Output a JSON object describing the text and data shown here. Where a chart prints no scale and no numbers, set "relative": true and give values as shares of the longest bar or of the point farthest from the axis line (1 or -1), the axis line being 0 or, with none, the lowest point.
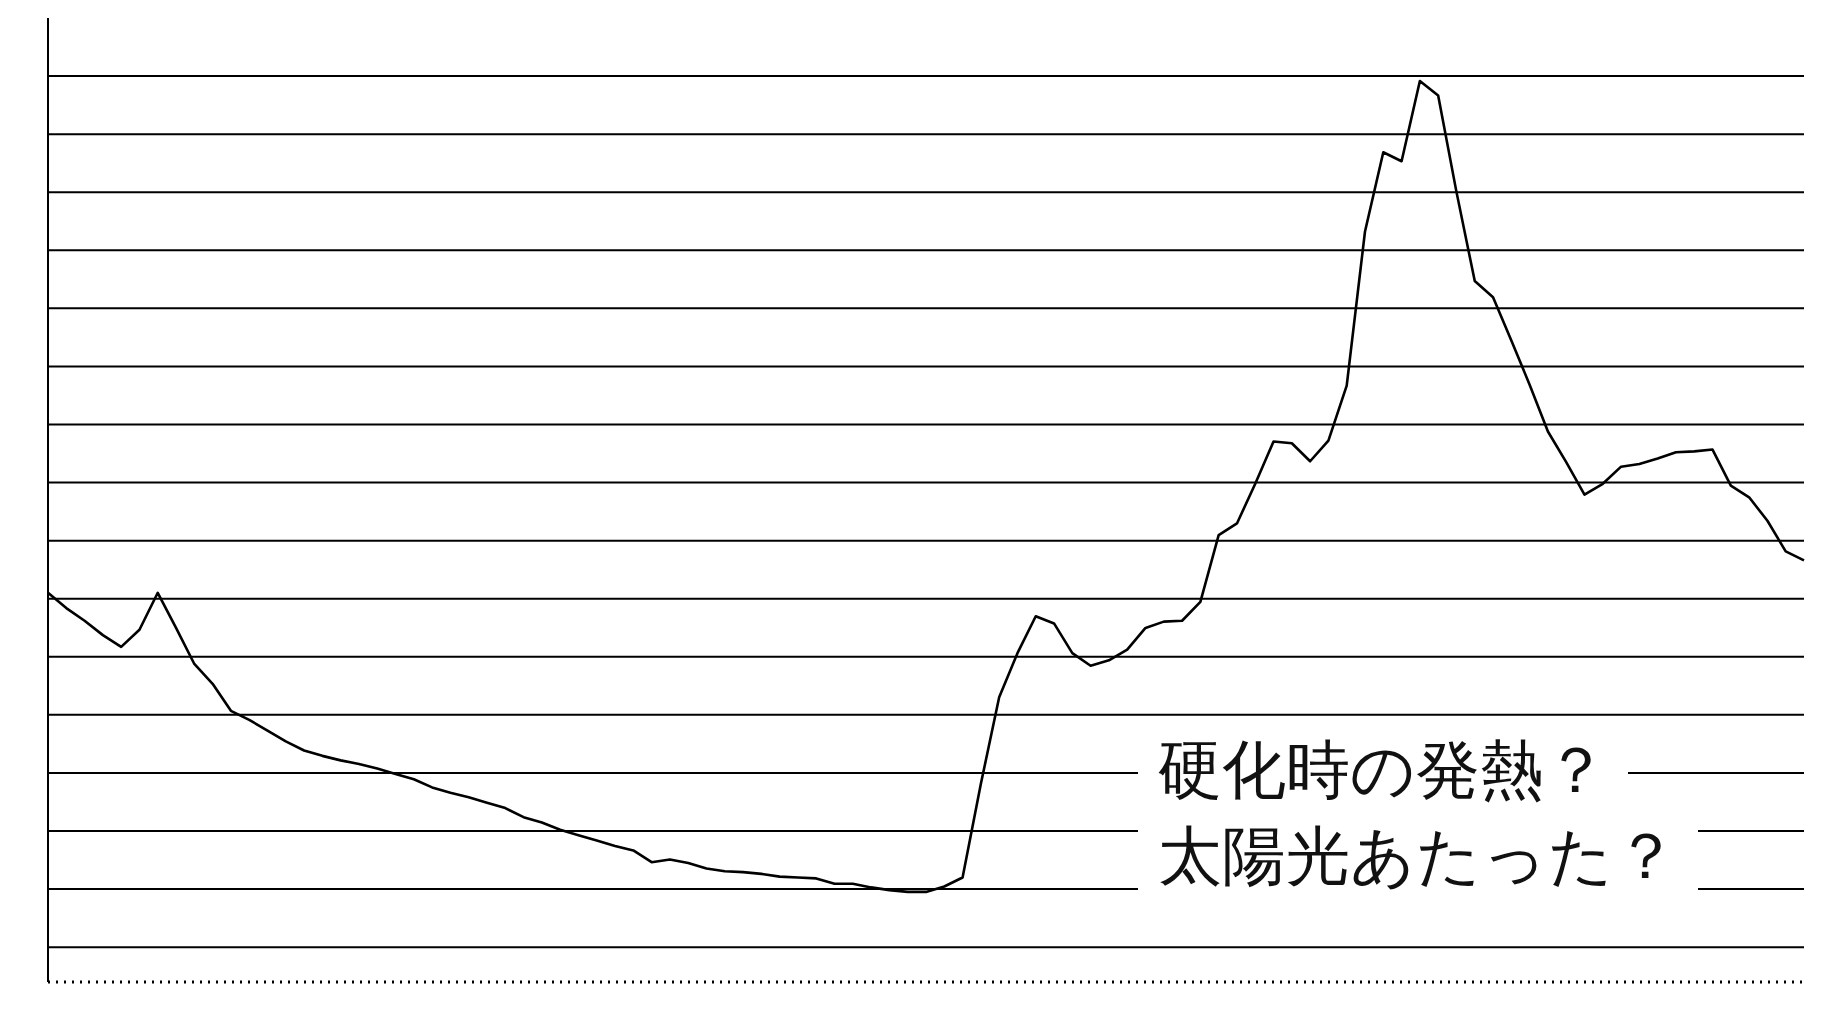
{
  "chart_data": {
    "type": "line",
    "relative": true,
    "grid": "y",
    "marker": "none",
    "line_style": "solid",
    "tick_labels": false,
    "annotations": [
      "硬化時の発熱？",
      "太陽光あたった？"
    ],
    "categories": [
      null,
      null,
      null,
      null,
      null,
      null,
      null,
      null,
      null,
      null,
      null,
      null,
      null,
      null,
      null,
      null,
      null,
      null,
      null,
      null,
      null,
      null,
      null,
      null,
      null,
      null,
      null,
      null,
      null,
      null,
      null,
      null,
      null,
      null,
      null,
      null,
      null,
      null,
      null,
      null,
      null,
      null,
      null,
      null,
      null,
      null,
      null,
      null,
      null,
      null,
      null,
      null,
      null,
      null,
      null,
      null,
      null,
      null,
      null,
      null,
      null,
      null,
      null,
      null,
      null,
      null,
      null,
      null,
      null,
      null,
      null,
      null,
      null,
      null,
      null,
      null,
      null,
      null,
      null,
      null,
      null,
      null,
      null,
      null,
      null,
      null,
      null,
      null,
      null,
      null,
      null,
      null,
      null,
      null,
      null,
      null,
      null
    ],
    "series": [
      {
        "color": "#000000",
        "values": [
          0.432,
          0.415,
          0.401,
          0.385,
          0.372,
          0.391,
          0.432,
          0.393,
          0.353,
          0.331,
          0.301,
          0.291,
          0.279,
          0.267,
          0.257,
          0.251,
          0.246,
          0.242,
          0.237,
          0.231,
          0.225,
          0.216,
          0.21,
          0.205,
          0.199,
          0.193,
          0.183,
          0.177,
          0.169,
          0.163,
          0.157,
          0.151,
          0.146,
          0.133,
          0.136,
          0.132,
          0.126,
          0.123,
          0.122,
          0.12,
          0.117,
          0.116,
          0.115,
          0.109,
          0.109,
          0.105,
          0.102,
          0.1,
          0.1,
          0.106,
          0.116,
          0.22,
          0.316,
          0.365,
          0.406,
          0.398,
          0.365,
          0.351,
          0.357,
          0.369,
          0.393,
          0.4,
          0.401,
          0.422,
          0.496,
          0.509,
          0.553,
          0.6,
          0.598,
          0.578,
          0.601,
          0.662,
          0.833,
          0.921,
          0.911,
          1,
          0.984,
          0.877,
          0.778,
          0.76,
          0.712,
          0.663,
          0.611,
          0.577,
          0.541,
          0.553,
          0.572,
          0.575,
          0.581,
          0.588,
          0.589,
          0.591,
          0.551,
          0.538,
          0.512,
          0.478,
          0.468
        ]
      }
    ]
  }
}
